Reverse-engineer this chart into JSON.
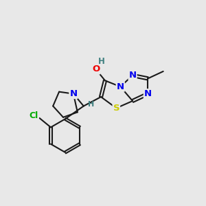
{
  "background_color": "#e8e8e8",
  "atom_colors": {
    "C": "#1a1a1a",
    "N": "#0000ee",
    "O": "#ee0000",
    "S": "#cccc00",
    "Cl": "#00aa00",
    "H": "#408080"
  },
  "figsize": [
    3.0,
    3.0
  ],
  "dpi": 100
}
